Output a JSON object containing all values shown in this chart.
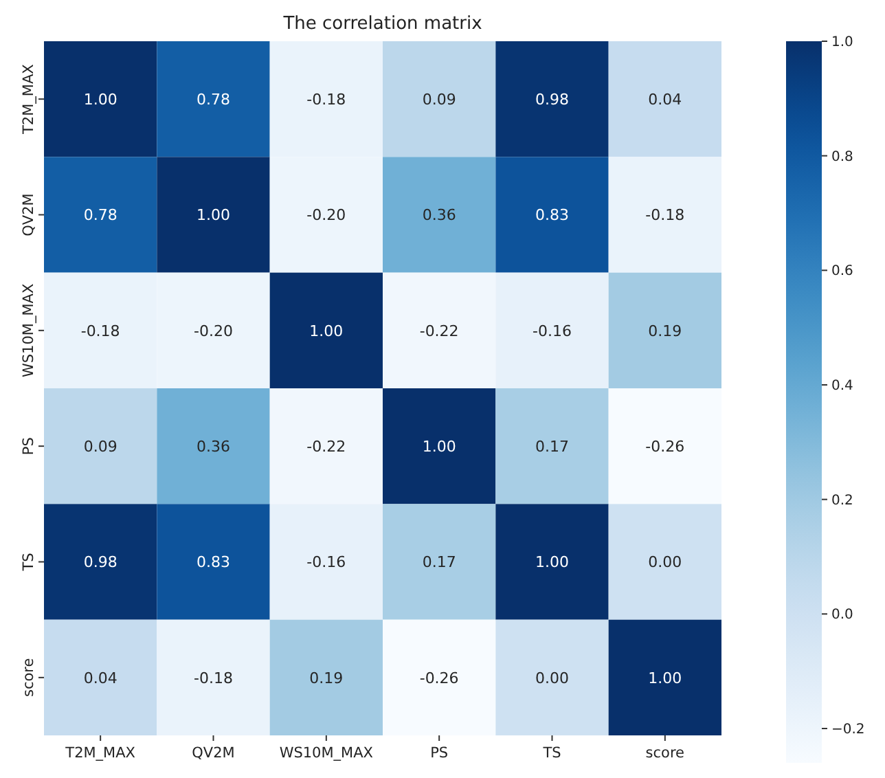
{
  "chart_data": {
    "type": "heatmap",
    "title": "The correlation matrix",
    "categories": [
      "T2M_MAX",
      "QV2M",
      "WS10M_MAX",
      "PS",
      "TS",
      "score"
    ],
    "y_categories": [
      "T2M_MAX",
      "QV2M",
      "WS10M_MAX",
      "PS",
      "TS",
      "score"
    ],
    "cells": [
      [
        1.0,
        0.78,
        -0.18,
        0.09,
        0.98,
        0.04
      ],
      [
        0.78,
        1.0,
        -0.2,
        0.36,
        0.83,
        -0.18
      ],
      [
        -0.18,
        -0.2,
        1.0,
        -0.22,
        -0.16,
        0.19
      ],
      [
        0.09,
        0.36,
        -0.22,
        1.0,
        0.17,
        -0.26
      ],
      [
        0.98,
        0.83,
        -0.16,
        0.17,
        1.0,
        0.0
      ],
      [
        0.04,
        -0.18,
        0.19,
        -0.26,
        0.0,
        1.0
      ]
    ],
    "cell_labels": [
      [
        "1.00",
        "0.78",
        "-0.18",
        "0.09",
        "0.98",
        "0.04"
      ],
      [
        "0.78",
        "1.00",
        "-0.20",
        "0.36",
        "0.83",
        "-0.18"
      ],
      [
        "-0.18",
        "-0.20",
        "1.00",
        "-0.22",
        "-0.16",
        "0.19"
      ],
      [
        "0.09",
        "0.36",
        "-0.22",
        "1.00",
        "0.17",
        "-0.26"
      ],
      [
        "0.98",
        "0.83",
        "-0.16",
        "0.17",
        "1.00",
        "0.00"
      ],
      [
        "0.04",
        "-0.18",
        "0.19",
        "-0.26",
        "0.00",
        "1.00"
      ]
    ],
    "clim": [
      -0.26,
      1.0
    ],
    "cticks": [
      {
        "value": -0.2,
        "label": "−0.2"
      },
      {
        "value": 0.0,
        "label": "0.0"
      },
      {
        "value": 0.2,
        "label": "0.2"
      },
      {
        "value": 0.4,
        "label": "0.4"
      },
      {
        "value": 0.6,
        "label": "0.6"
      },
      {
        "value": 0.8,
        "label": "0.8"
      },
      {
        "value": 1.0,
        "label": "1.0"
      }
    ]
  }
}
